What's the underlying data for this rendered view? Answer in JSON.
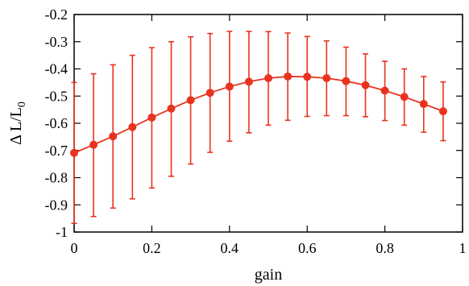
{
  "chart_data": {
    "type": "line",
    "title": "",
    "xlabel": "gain",
    "ylabel": "Δ L/L",
    "ylabel_subscript": "0",
    "xlim": [
      0,
      1
    ],
    "ylim": [
      -1,
      -0.2
    ],
    "x_ticks": [
      0,
      0.2,
      0.4,
      0.6,
      0.8,
      1
    ],
    "x_tick_labels": [
      "0",
      "0.2",
      "0.4",
      "0.6",
      "0.8",
      "1"
    ],
    "y_ticks": [
      -1,
      -0.9,
      -0.8,
      -0.7,
      -0.6,
      -0.5,
      -0.4,
      -0.3,
      -0.2
    ],
    "y_tick_labels": [
      "-1",
      "-0.9",
      "-0.8",
      "-0.7",
      "-0.6",
      "-0.5",
      "-0.4",
      "-0.3",
      "-0.2"
    ],
    "grid": false,
    "legend": "none",
    "series": [
      {
        "color": "#e8331f",
        "marker": "circle",
        "x": [
          0,
          0.05,
          0.1,
          0.15,
          0.2,
          0.25,
          0.3,
          0.35,
          0.4,
          0.45,
          0.5,
          0.55,
          0.6,
          0.65,
          0.7,
          0.75,
          0.8,
          0.85,
          0.9,
          0.95
        ],
        "y": [
          -0.709,
          -0.679,
          -0.648,
          -0.614,
          -0.579,
          -0.546,
          -0.515,
          -0.488,
          -0.465,
          -0.447,
          -0.434,
          -0.428,
          -0.429,
          -0.434,
          -0.445,
          -0.46,
          -0.48,
          -0.503,
          -0.529,
          -0.556
        ],
        "y_upper": [
          -0.45,
          -0.418,
          -0.385,
          -0.35,
          -0.322,
          -0.3,
          -0.282,
          -0.27,
          -0.262,
          -0.262,
          -0.263,
          -0.268,
          -0.281,
          -0.297,
          -0.32,
          -0.345,
          -0.372,
          -0.4,
          -0.428,
          -0.448
        ],
        "y_lower": [
          -0.968,
          -0.943,
          -0.912,
          -0.878,
          -0.838,
          -0.795,
          -0.75,
          -0.707,
          -0.666,
          -0.635,
          -0.607,
          -0.589,
          -0.575,
          -0.572,
          -0.572,
          -0.576,
          -0.59,
          -0.607,
          -0.633,
          -0.664
        ]
      }
    ]
  }
}
